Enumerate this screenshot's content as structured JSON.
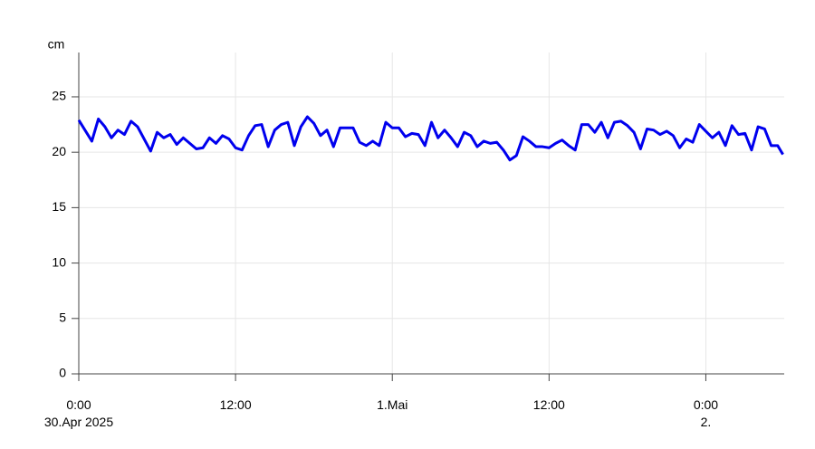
{
  "chart_data": {
    "type": "line",
    "y_label": "cm",
    "x": [
      "2025-04-30T00:00",
      "2025-04-30T01:00",
      "2025-04-30T01:30",
      "2025-04-30T02:00",
      "2025-04-30T02:30",
      "2025-04-30T03:00",
      "2025-04-30T03:30",
      "2025-04-30T04:00",
      "2025-04-30T04:30",
      "2025-04-30T05:30",
      "2025-04-30T06:00",
      "2025-04-30T06:30",
      "2025-04-30T07:00",
      "2025-04-30T07:30",
      "2025-04-30T08:00",
      "2025-04-30T09:00",
      "2025-04-30T09:30",
      "2025-04-30T10:00",
      "2025-04-30T10:30",
      "2025-04-30T11:00",
      "2025-04-30T11:30",
      "2025-04-30T12:00",
      "2025-04-30T12:30",
      "2025-04-30T13:00",
      "2025-04-30T13:30",
      "2025-04-30T14:00",
      "2025-04-30T14:30",
      "2025-04-30T15:00",
      "2025-04-30T15:30",
      "2025-04-30T16:00",
      "2025-04-30T16:30",
      "2025-04-30T17:00",
      "2025-04-30T17:30",
      "2025-04-30T18:00",
      "2025-04-30T18:30",
      "2025-04-30T19:00",
      "2025-04-30T19:30",
      "2025-04-30T20:00",
      "2025-04-30T21:00",
      "2025-04-30T21:30",
      "2025-04-30T22:00",
      "2025-04-30T22:30",
      "2025-04-30T23:00",
      "2025-04-30T23:30",
      "2025-05-01T00:00",
      "2025-05-01T00:30",
      "2025-05-01T01:00",
      "2025-05-01T01:30",
      "2025-05-01T02:00",
      "2025-05-01T02:30",
      "2025-05-01T03:00",
      "2025-05-01T03:30",
      "2025-05-01T04:00",
      "2025-05-01T04:30",
      "2025-05-01T05:00",
      "2025-05-01T05:30",
      "2025-05-01T06:00",
      "2025-05-01T06:30",
      "2025-05-01T07:00",
      "2025-05-01T07:30",
      "2025-05-01T08:00",
      "2025-05-01T08:30",
      "2025-05-01T09:00",
      "2025-05-01T09:30",
      "2025-05-01T10:00",
      "2025-05-01T10:30",
      "2025-05-01T11:00",
      "2025-05-01T11:30",
      "2025-05-01T12:00",
      "2025-05-01T12:30",
      "2025-05-01T13:00",
      "2025-05-01T13:30",
      "2025-05-01T14:00",
      "2025-05-01T14:30",
      "2025-05-01T15:00",
      "2025-05-01T15:30",
      "2025-05-01T16:00",
      "2025-05-01T16:30",
      "2025-05-01T17:00",
      "2025-05-01T17:30",
      "2025-05-01T18:00",
      "2025-05-01T18:30",
      "2025-05-01T19:00",
      "2025-05-01T19:30",
      "2025-05-01T20:00",
      "2025-05-01T20:30",
      "2025-05-01T21:00",
      "2025-05-01T21:30",
      "2025-05-01T22:00",
      "2025-05-01T22:30",
      "2025-05-01T23:00",
      "2025-05-01T23:30",
      "2025-05-02T00:00",
      "2025-05-02T00:30",
      "2025-05-02T01:00",
      "2025-05-02T01:30",
      "2025-05-02T02:00",
      "2025-05-02T02:30",
      "2025-05-02T03:00",
      "2025-05-02T03:30",
      "2025-05-02T04:00",
      "2025-05-02T04:30",
      "2025-05-02T05:00",
      "2025-05-02T05:30",
      "2025-05-02T05:54"
    ],
    "series": [
      {
        "color": "#0000ee",
        "values": [
          22.9,
          21.0,
          23.0,
          22.3,
          21.3,
          22.0,
          21.6,
          22.8,
          22.3,
          20.1,
          21.8,
          21.3,
          21.6,
          20.7,
          21.3,
          20.3,
          20.4,
          21.3,
          20.8,
          21.5,
          21.2,
          20.4,
          20.2,
          21.5,
          22.4,
          22.5,
          20.5,
          22.0,
          22.5,
          22.7,
          20.6,
          22.3,
          23.2,
          22.6,
          21.5,
          22.0,
          20.5,
          22.2,
          22.2,
          20.9,
          20.6,
          21.0,
          20.6,
          22.7,
          22.2,
          22.2,
          21.4,
          21.7,
          21.6,
          20.6,
          22.7,
          21.3,
          22.0,
          21.3,
          20.5,
          21.8,
          21.5,
          20.5,
          21.0,
          20.8,
          20.9,
          20.2,
          19.3,
          19.7,
          21.4,
          21.0,
          20.5,
          20.5,
          20.4,
          20.8,
          21.1,
          20.6,
          20.2,
          22.5,
          22.5,
          21.8,
          22.7,
          21.3,
          22.7,
          22.8,
          22.4,
          21.8,
          20.3,
          22.1,
          22.0,
          21.6,
          21.9,
          21.5,
          20.4,
          21.2,
          20.9,
          22.5,
          21.9,
          21.3,
          21.8,
          20.6,
          22.4,
          21.6,
          21.7,
          20.2,
          22.3,
          22.1,
          20.6,
          20.6,
          19.8
        ]
      }
    ],
    "xlim": [
      "2025-04-30T00:00",
      "2025-05-02T06:00"
    ],
    "xticks": [
      {
        "value": "2025-04-30T00:00",
        "label": "0:00\n30.Apr 2025"
      },
      {
        "value": "2025-04-30T12:00",
        "label": "12:00"
      },
      {
        "value": "2025-05-01T00:00",
        "label": "1.Mai"
      },
      {
        "value": "2025-05-01T12:00",
        "label": "12:00"
      },
      {
        "value": "2025-05-02T00:00",
        "label": "0:00\n2."
      }
    ],
    "ylim": [
      0,
      29
    ],
    "yticks": [
      0,
      5,
      10,
      15,
      20,
      25
    ],
    "grid": true
  }
}
